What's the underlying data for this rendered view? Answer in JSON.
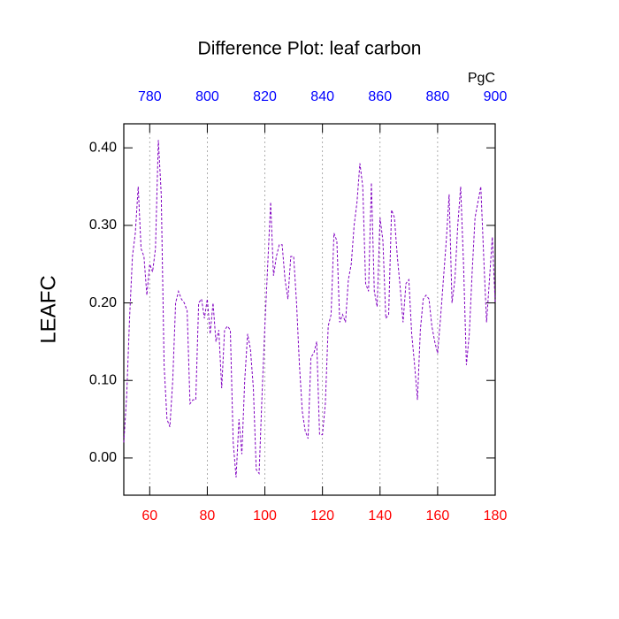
{
  "chart_data": {
    "type": "line",
    "title": "Difference Plot: leaf carbon",
    "y_label": "LEAFC",
    "x2_unit": "PgC",
    "x": [
      51,
      52,
      53,
      54,
      55,
      56,
      57,
      58,
      59,
      60,
      61,
      62,
      63,
      64,
      65,
      66,
      67,
      68,
      69,
      70,
      71,
      72,
      73,
      74,
      75,
      76,
      77,
      78,
      79,
      80,
      81,
      82,
      83,
      84,
      85,
      86,
      87,
      88,
      89,
      90,
      91,
      92,
      93,
      94,
      95,
      96,
      97,
      98,
      99,
      100,
      101,
      102,
      103,
      104,
      105,
      106,
      107,
      108,
      109,
      110,
      111,
      112,
      113,
      114,
      115,
      116,
      117,
      118,
      119,
      120,
      121,
      122,
      123,
      124,
      125,
      126,
      127,
      128,
      129,
      130,
      131,
      132,
      133,
      134,
      135,
      136,
      137,
      138,
      139,
      140,
      141,
      142,
      143,
      144,
      145,
      146,
      147,
      148,
      149,
      150,
      151,
      152,
      153,
      154,
      155,
      156,
      157,
      158,
      159,
      160,
      161,
      162,
      163,
      164,
      165,
      166,
      167,
      168,
      169,
      170,
      171,
      172,
      173,
      174,
      175,
      176,
      177,
      178,
      179,
      180
    ],
    "series": [
      {
        "color": "#8000c0",
        "values": [
          0.02,
          0.08,
          0.18,
          0.26,
          0.29,
          0.35,
          0.27,
          0.26,
          0.21,
          0.25,
          0.24,
          0.27,
          0.41,
          0.34,
          0.12,
          0.05,
          0.04,
          0.1,
          0.2,
          0.215,
          0.205,
          0.2,
          0.19,
          0.07,
          0.075,
          0.075,
          0.2,
          0.205,
          0.18,
          0.205,
          0.16,
          0.2,
          0.15,
          0.165,
          0.09,
          0.165,
          0.17,
          0.165,
          0.02,
          -0.025,
          0.05,
          0.005,
          0.1,
          0.16,
          0.14,
          0.09,
          -0.015,
          -0.02,
          0.08,
          0.17,
          0.25,
          0.33,
          0.235,
          0.26,
          0.275,
          0.275,
          0.23,
          0.205,
          0.26,
          0.26,
          0.2,
          0.12,
          0.06,
          0.035,
          0.025,
          0.13,
          0.135,
          0.15,
          0.03,
          0.03,
          0.07,
          0.17,
          0.185,
          0.29,
          0.28,
          0.175,
          0.185,
          0.175,
          0.23,
          0.25,
          0.3,
          0.33,
          0.38,
          0.35,
          0.225,
          0.215,
          0.355,
          0.215,
          0.195,
          0.31,
          0.28,
          0.18,
          0.185,
          0.32,
          0.31,
          0.26,
          0.22,
          0.175,
          0.225,
          0.23,
          0.16,
          0.12,
          0.075,
          0.165,
          0.205,
          0.21,
          0.205,
          0.17,
          0.15,
          0.135,
          0.18,
          0.23,
          0.28,
          0.34,
          0.2,
          0.23,
          0.3,
          0.35,
          0.25,
          0.12,
          0.16,
          0.24,
          0.31,
          0.33,
          0.35,
          0.26,
          0.175,
          0.23,
          0.285,
          0.2
        ]
      }
    ],
    "xlim": [
      51,
      180
    ],
    "xticks": [
      60,
      80,
      100,
      120,
      140,
      160,
      180
    ],
    "x2lim": [
      771,
      900
    ],
    "x2ticks": [
      780,
      800,
      820,
      840,
      860,
      880,
      900
    ],
    "ylim": [
      -0.048,
      0.431
    ],
    "yticks": [
      {
        "value": 0,
        "label": "0.00"
      },
      {
        "value": 0.1,
        "label": "0.10"
      },
      {
        "value": 0.2,
        "label": "0.20"
      },
      {
        "value": 0.3,
        "label": "0.30"
      },
      {
        "value": 0.4,
        "label": "0.40"
      }
    ],
    "grid": true,
    "xtick_color": "#ff0000",
    "x2tick_color": "#0000ff"
  }
}
